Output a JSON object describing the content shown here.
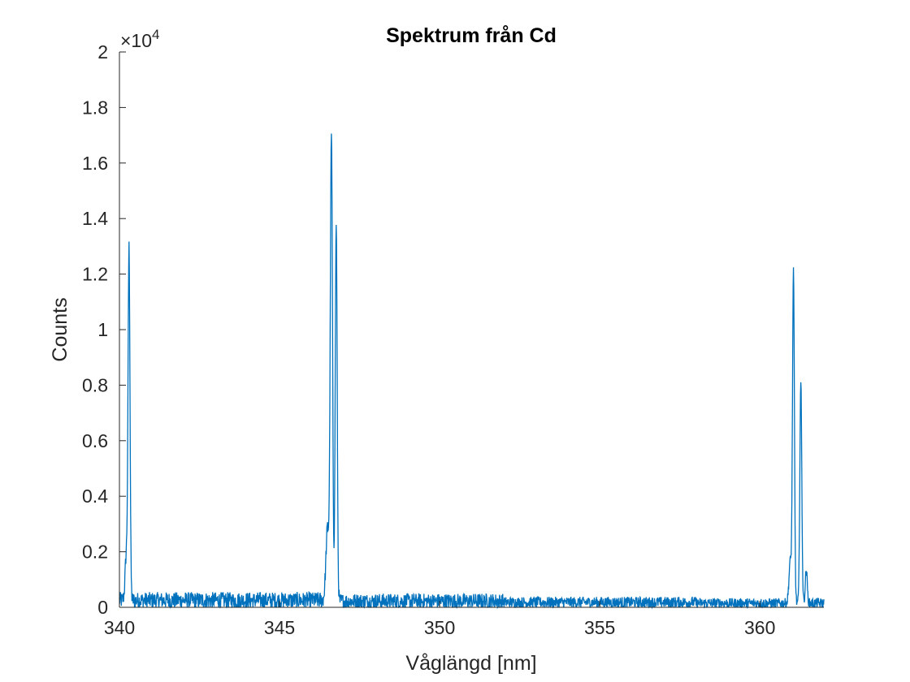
{
  "chart_data": {
    "type": "line",
    "title": "Spektrum från Cd",
    "xlabel": "Våglängd [nm]",
    "ylabel": "Counts",
    "y_exponent_label": "×10",
    "y_exponent_power": "4",
    "xlim": [
      340,
      362
    ],
    "ylim": [
      0,
      20000
    ],
    "xticks": [
      340,
      345,
      350,
      355,
      360
    ],
    "xtick_labels": [
      "340",
      "345",
      "350",
      "355",
      "360"
    ],
    "yticks": [
      0,
      2000,
      4000,
      6000,
      8000,
      10000,
      12000,
      14000,
      16000,
      18000,
      20000
    ],
    "ytick_labels": [
      "0",
      "0.2",
      "0.4",
      "0.6",
      "0.8",
      "1",
      "1.2",
      "1.4",
      "1.6",
      "1.8",
      "2"
    ],
    "grid": false,
    "line_color": "#0072BD",
    "baseline": {
      "segments": [
        {
          "x_start": 340.0,
          "x_end": 346.5,
          "mean": 250,
          "spread": 300
        },
        {
          "x_start": 346.8,
          "x_end": 352.0,
          "mean": 220,
          "spread": 280
        },
        {
          "x_start": 352.0,
          "x_end": 358.0,
          "mean": 180,
          "spread": 200
        },
        {
          "x_start": 358.0,
          "x_end": 362.0,
          "mean": 150,
          "spread": 180
        }
      ]
    },
    "series": [
      {
        "name": "",
        "peaks": [
          {
            "x": 340.3,
            "y": 12500,
            "width": 0.03
          },
          {
            "x": 340.22,
            "y": 1700,
            "width": 0.04
          },
          {
            "x": 346.62,
            "y": 16750,
            "width": 0.035
          },
          {
            "x": 346.77,
            "y": 13700,
            "width": 0.03
          },
          {
            "x": 346.5,
            "y": 2600,
            "width": 0.05
          },
          {
            "x": 361.05,
            "y": 11850,
            "width": 0.03
          },
          {
            "x": 361.28,
            "y": 7950,
            "width": 0.03
          },
          {
            "x": 361.45,
            "y": 1200,
            "width": 0.03
          },
          {
            "x": 360.95,
            "y": 1500,
            "width": 0.04
          }
        ]
      }
    ]
  }
}
